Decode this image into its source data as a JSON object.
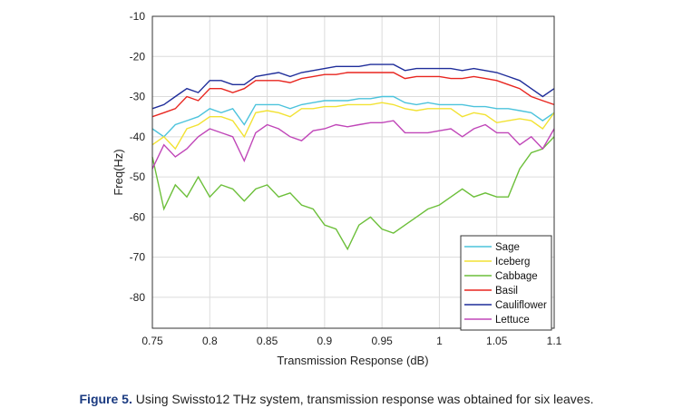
{
  "chart_data": {
    "type": "line",
    "title": "",
    "xlabel": "Transmission Response (dB)",
    "ylabel": "Freq(Hz)",
    "xlim": [
      0.75,
      1.1
    ],
    "ylim": [
      -87.7,
      -10
    ],
    "xticks": [
      "0.75",
      "0.8",
      "0.85",
      "0.9",
      "0.95",
      "1",
      "1.05",
      "1.1"
    ],
    "xtick_values": [
      0.75,
      0.8,
      0.85,
      0.9,
      0.95,
      1.0,
      1.05,
      1.1
    ],
    "yticks": [
      "-10",
      "-20",
      "-30",
      "-40",
      "-50",
      "-60",
      "-70",
      "-80"
    ],
    "ytick_values": [
      -10,
      -20,
      -30,
      -40,
      -50,
      -60,
      -70,
      -80
    ],
    "grid": true,
    "legend_position": "bottom-right",
    "x": [
      0.75,
      0.76,
      0.77,
      0.78,
      0.79,
      0.8,
      0.81,
      0.82,
      0.83,
      0.84,
      0.85,
      0.86,
      0.87,
      0.88,
      0.89,
      0.9,
      0.91,
      0.92,
      0.93,
      0.94,
      0.95,
      0.96,
      0.97,
      0.98,
      0.99,
      1.0,
      1.01,
      1.02,
      1.03,
      1.04,
      1.05,
      1.06,
      1.07,
      1.08,
      1.09,
      1.1
    ],
    "series": [
      {
        "name": "Sage",
        "color": "#4cc3dc",
        "values": [
          -38,
          -40,
          -37,
          -36,
          -35,
          -33,
          -34,
          -33,
          -37,
          -32,
          -32,
          -32,
          -33,
          -32,
          -31.5,
          -31,
          -31,
          -31,
          -30.5,
          -30.5,
          -30,
          -30,
          -31.5,
          -32,
          -31.5,
          -32,
          -32,
          -32,
          -32.5,
          -32.5,
          -33,
          -33,
          -33.5,
          -34,
          -36,
          -34
        ]
      },
      {
        "name": "Iceberg",
        "color": "#f2e233",
        "values": [
          -42,
          -40,
          -43,
          -38,
          -37,
          -35,
          -35,
          -36,
          -40,
          -34,
          -33.5,
          -34,
          -35,
          -33,
          -33,
          -32.5,
          -32.5,
          -32,
          -32,
          -32,
          -31.5,
          -32,
          -33,
          -33.5,
          -33,
          -33,
          -33,
          -35,
          -34,
          -34.5,
          -36.5,
          -36,
          -35.5,
          -36,
          -38,
          -34
        ]
      },
      {
        "name": "Cabbage",
        "color": "#6cbf3a",
        "values": [
          -45,
          -58,
          -52,
          -55,
          -50,
          -55,
          -52,
          -53,
          -56,
          -53,
          -52,
          -55,
          -54,
          -57,
          -58,
          -62,
          -63,
          -68,
          -62,
          -60,
          -63,
          -64,
          -62,
          -60,
          -58,
          -57,
          -55,
          -53,
          -55,
          -54,
          -55,
          -55,
          -48,
          -44,
          -43,
          -40
        ]
      },
      {
        "name": "Basil",
        "color": "#e8251f",
        "values": [
          -35,
          -34,
          -33,
          -30,
          -31,
          -28,
          -28,
          -29,
          -28,
          -26,
          -26,
          -26,
          -26.5,
          -25.5,
          -25,
          -24.5,
          -24.5,
          -24,
          -24,
          -24,
          -24,
          -24,
          -25.5,
          -25,
          -25,
          -25,
          -25.5,
          -25.5,
          -25,
          -25.5,
          -26,
          -27,
          -28,
          -30,
          -31,
          -32
        ]
      },
      {
        "name": "Cauliflower",
        "color": "#1f2d9a",
        "values": [
          -33,
          -32,
          -30,
          -28,
          -29,
          -26,
          -26,
          -27,
          -27,
          -25,
          -24.5,
          -24,
          -25,
          -24,
          -23.5,
          -23,
          -22.5,
          -22.5,
          -22.5,
          -22,
          -22,
          -22,
          -23.5,
          -23,
          -23,
          -23,
          -23,
          -23.5,
          -23,
          -23.5,
          -24,
          -25,
          -26,
          -28,
          -30,
          -28
        ]
      },
      {
        "name": "Lettuce",
        "color": "#c046b8",
        "values": [
          -48,
          -42,
          -45,
          -43,
          -40,
          -38,
          -39,
          -40,
          -46,
          -39,
          -37,
          -38,
          -40,
          -41,
          -38.5,
          -38,
          -37,
          -37.5,
          -37,
          -36.5,
          -36.5,
          -36,
          -39,
          -39,
          -39,
          -38.5,
          -38,
          -40,
          -38,
          -37,
          -39,
          -39,
          -42,
          -40,
          -43,
          -38
        ]
      }
    ]
  },
  "caption": {
    "label": "Figure 5.",
    "text": " Using Swissto12 THz system, transmission response was obtained for six leaves."
  }
}
